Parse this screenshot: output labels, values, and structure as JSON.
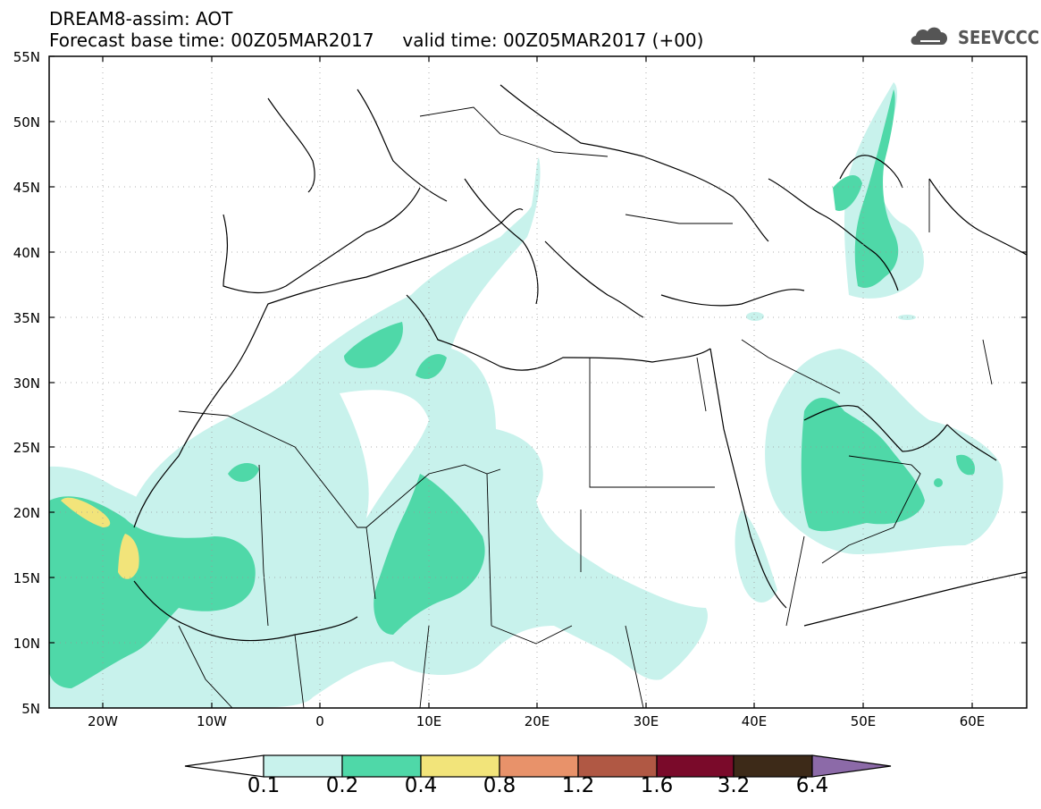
{
  "title": {
    "line1": "DREAM8-assim: AOT",
    "line2": "Forecast base time: 00Z05MAR2017     valid time: 00Z05MAR2017 (+00)"
  },
  "logo": {
    "text": "SEEVCCC",
    "icon": "cloud-icon"
  },
  "map": {
    "lat_labels": [
      "55N",
      "50N",
      "45N",
      "40N",
      "35N",
      "30N",
      "25N",
      "20N",
      "15N",
      "10N",
      "5N"
    ],
    "lon_labels": [
      "20W",
      "10W",
      "0",
      "10E",
      "20E",
      "30E",
      "40E",
      "50E",
      "60E"
    ],
    "variable": "AOT",
    "colors": {
      "c01": "#c8f2ec",
      "c02": "#4fd8a8",
      "c04": "#f2e47a"
    }
  },
  "colorbar": {
    "labels": [
      "0.1",
      "0.2",
      "0.4",
      "0.8",
      "1.2",
      "1.6",
      "3.2",
      "6.4"
    ],
    "colors": [
      "#c8f2ec",
      "#4fd8a8",
      "#f2e47a",
      "#e8926a",
      "#b05844",
      "#7a0a2a",
      "#3d2a18",
      "#8c6aa8"
    ]
  }
}
